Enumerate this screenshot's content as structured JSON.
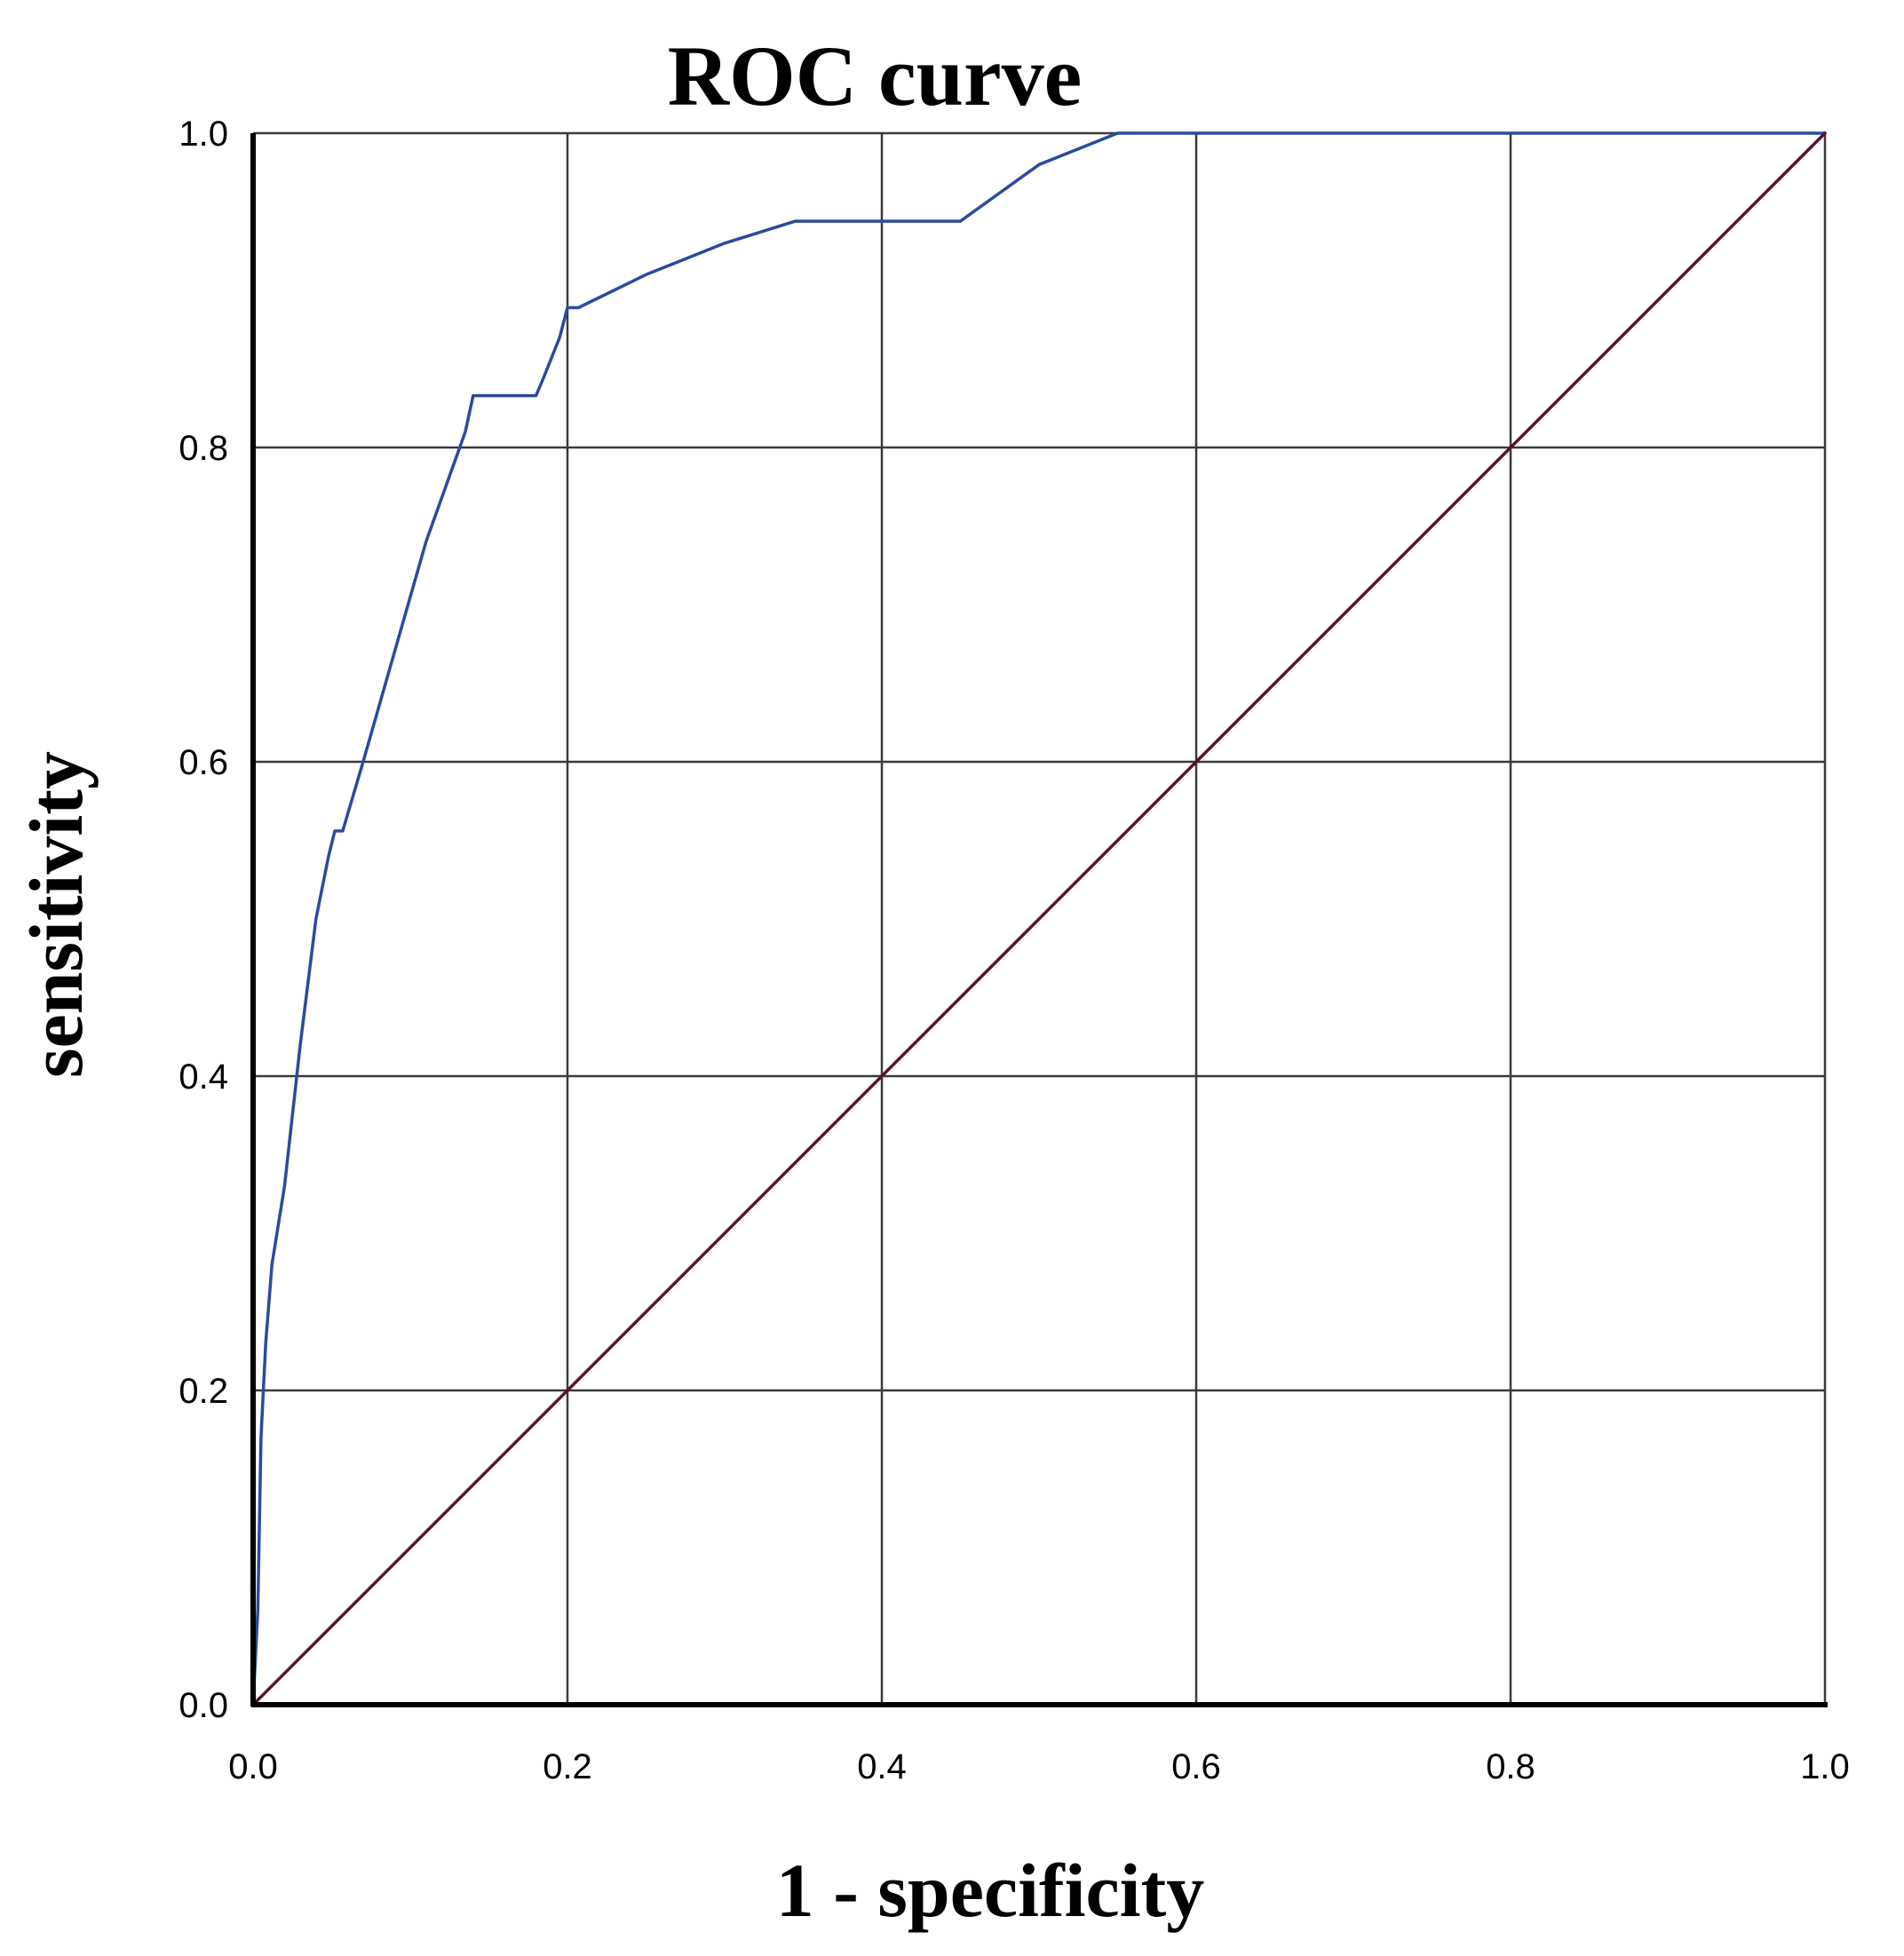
{
  "chart_data": {
    "type": "line",
    "title": "ROC curve",
    "xlabel": "1 - specificity",
    "ylabel": "sensitivity",
    "xlim": [
      0,
      1
    ],
    "ylim": [
      0,
      1
    ],
    "x_ticks": [
      "0.0",
      "0.2",
      "0.4",
      "0.6",
      "0.8",
      "1.0"
    ],
    "y_ticks": [
      "0.0",
      "0.2",
      "0.4",
      "0.6",
      "0.8",
      "1.0"
    ],
    "grid": true,
    "series": [
      {
        "color": "#2b4a9e",
        "x": [
          0.0,
          0.003,
          0.005,
          0.008,
          0.012,
          0.02,
          0.03,
          0.04,
          0.048,
          0.052,
          0.057,
          0.07,
          0.09,
          0.11,
          0.135,
          0.14,
          0.18,
          0.185,
          0.195,
          0.2,
          0.207,
          0.25,
          0.3,
          0.345,
          0.4,
          0.45,
          0.5,
          0.55,
          0.6,
          0.7,
          0.8,
          0.9,
          1.0
        ],
        "y": [
          0.0,
          0.06,
          0.17,
          0.23,
          0.28,
          0.33,
          0.42,
          0.5,
          0.54,
          0.556,
          0.556,
          0.6,
          0.67,
          0.74,
          0.81,
          0.833,
          0.833,
          0.845,
          0.87,
          0.889,
          0.889,
          0.91,
          0.93,
          0.944,
          0.944,
          0.944,
          0.98,
          1.0,
          1.0,
          1.0,
          1.0,
          1.0,
          1.0
        ]
      },
      {
        "color": "#5a1030",
        "x": [
          0,
          1
        ],
        "y": [
          0,
          1
        ]
      }
    ]
  }
}
